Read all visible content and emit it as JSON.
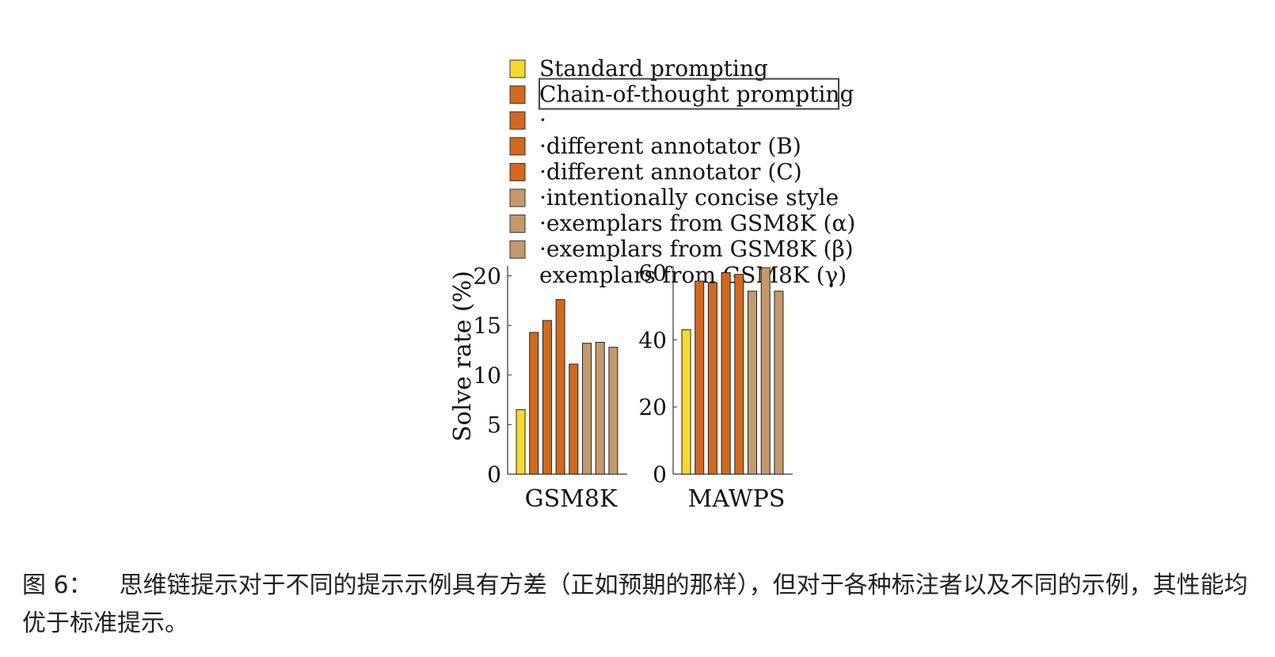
{
  "legend": [
    {
      "label": "Standard prompting",
      "color": "#f7d92e"
    },
    {
      "label": "Chain-of-thought prompting",
      "color": "#d2691e"
    },
    {
      "label": "·",
      "color": "#d2691e"
    },
    {
      "label": "·different annotator (B)",
      "color": "#d2691e"
    },
    {
      "label": "·different annotator (C)",
      "color": "#d2691e"
    },
    {
      "label": "·intentionally concise style",
      "color": "#c49a6c"
    },
    {
      "label": "·exemplars from GSM8K (α)",
      "color": "#c49a6c"
    },
    {
      "label": "·exemplars from GSM8K (β)",
      "color": "#c49a6c"
    },
    {
      "label": "exemplars from GSM8K (γ)",
      "color": ""
    }
  ],
  "chart_data": [
    {
      "type": "bar",
      "xlabel": "GSM8K",
      "ylabel": "Solve rate (%)",
      "ylim": [
        0,
        21
      ],
      "yticks": [
        0,
        5,
        10,
        15,
        20
      ],
      "values": [
        6.5,
        14.3,
        15.5,
        17.6,
        11.1,
        13.2,
        13.3,
        12.8
      ],
      "colors": [
        "#f7d92e",
        "#d2691e",
        "#d2691e",
        "#d2691e",
        "#d2691e",
        "#c49a6c",
        "#c49a6c",
        "#c49a6c"
      ]
    },
    {
      "type": "bar",
      "xlabel": "MAWPS",
      "ylabel": "",
      "ylim": [
        0,
        62
      ],
      "yticks": [
        0,
        20,
        40,
        60
      ],
      "values": [
        43.0,
        57.5,
        57.0,
        60.0,
        59.5,
        54.5,
        61.5,
        54.5
      ],
      "colors": [
        "#f7d92e",
        "#d2691e",
        "#d2691e",
        "#d2691e",
        "#d2691e",
        "#c49a6c",
        "#c49a6c",
        "#c49a6c"
      ]
    }
  ],
  "caption": {
    "label": "图 6：",
    "text": "思维链提示对于不同的提示示例具有方差（正如预期的那样），但对于各种标注者以及不同的示例，其性能均优于标准提示。"
  }
}
